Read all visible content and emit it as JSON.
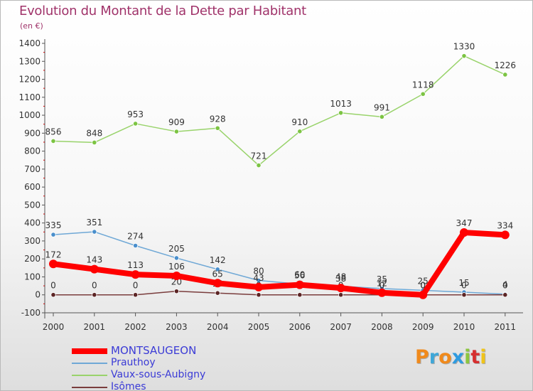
{
  "header": {
    "title": "Evolution du Montant de la Dette par Habitant",
    "subtitle": "(en €)"
  },
  "logo": {
    "text": "Proxiti",
    "letter_colors": [
      "#f08a1c",
      "#3fa7d8",
      "#f08a1c",
      "#2e9be0",
      "#8cc63f",
      "#d62f2f",
      "#f0c419"
    ]
  },
  "chart_data": {
    "type": "line",
    "x": [
      "2000",
      "2001",
      "2002",
      "2003",
      "2004",
      "2005",
      "2006",
      "2007",
      "2008",
      "2009",
      "2010",
      "2011"
    ],
    "ylim": [
      -100,
      1400
    ],
    "yticks": [
      "-100",
      "0",
      "100",
      "200",
      "300",
      "400",
      "500",
      "600",
      "700",
      "800",
      "900",
      "1000",
      "1100",
      "1200",
      "1300",
      "1400"
    ],
    "grid": false,
    "legend_position": "bottom-left",
    "series": [
      {
        "name": "Vaux-sous-Aubigny",
        "color": "#99d36b",
        "marker": "#7cc443",
        "width": 1.5,
        "values": [
          856,
          848,
          953,
          909,
          928,
          721,
          910,
          1013,
          991,
          1118,
          1330,
          1226
        ],
        "labels": [
          "856",
          "848",
          "953",
          "909",
          "928",
          "721",
          "910",
          "1013",
          "991",
          "1118",
          "1330",
          "1226"
        ]
      },
      {
        "name": "Prauthoy",
        "color": "#6fa8d6",
        "marker": "#4a8fcc",
        "width": 1.5,
        "values": [
          335,
          351,
          274,
          205,
          142,
          80,
          60,
          48,
          35,
          25,
          15,
          4
        ],
        "labels": [
          "335",
          "351",
          "274",
          "205",
          "142",
          "80",
          "60",
          "48",
          "35",
          "25",
          "15",
          "4"
        ]
      },
      {
        "name": "Isômes",
        "color": "#7a3d3d",
        "marker": "#5c2525",
        "width": 1.5,
        "values": [
          0,
          0,
          0,
          20,
          10,
          0,
          0,
          0,
          0,
          0,
          0,
          0
        ],
        "labels": [
          "0",
          "0",
          "0",
          "20",
          "10",
          "0",
          "0",
          "0",
          "0",
          "0",
          "0",
          "0"
        ]
      },
      {
        "name": "MONTSAUGEON",
        "color": "#ff0000",
        "marker": "#ff0000",
        "width": 8,
        "values": [
          172,
          143,
          113,
          106,
          65,
          43,
          56,
          38,
          12,
          0,
          347,
          334
        ],
        "labels": [
          "172",
          "143",
          "113",
          "106",
          "65",
          "43",
          "56",
          "38",
          "12",
          "0",
          "347",
          "334"
        ]
      }
    ],
    "legend_order": [
      "MONTSAUGEON",
      "Prauthoy",
      "Vaux-sous-Aubigny",
      "Isômes"
    ]
  }
}
